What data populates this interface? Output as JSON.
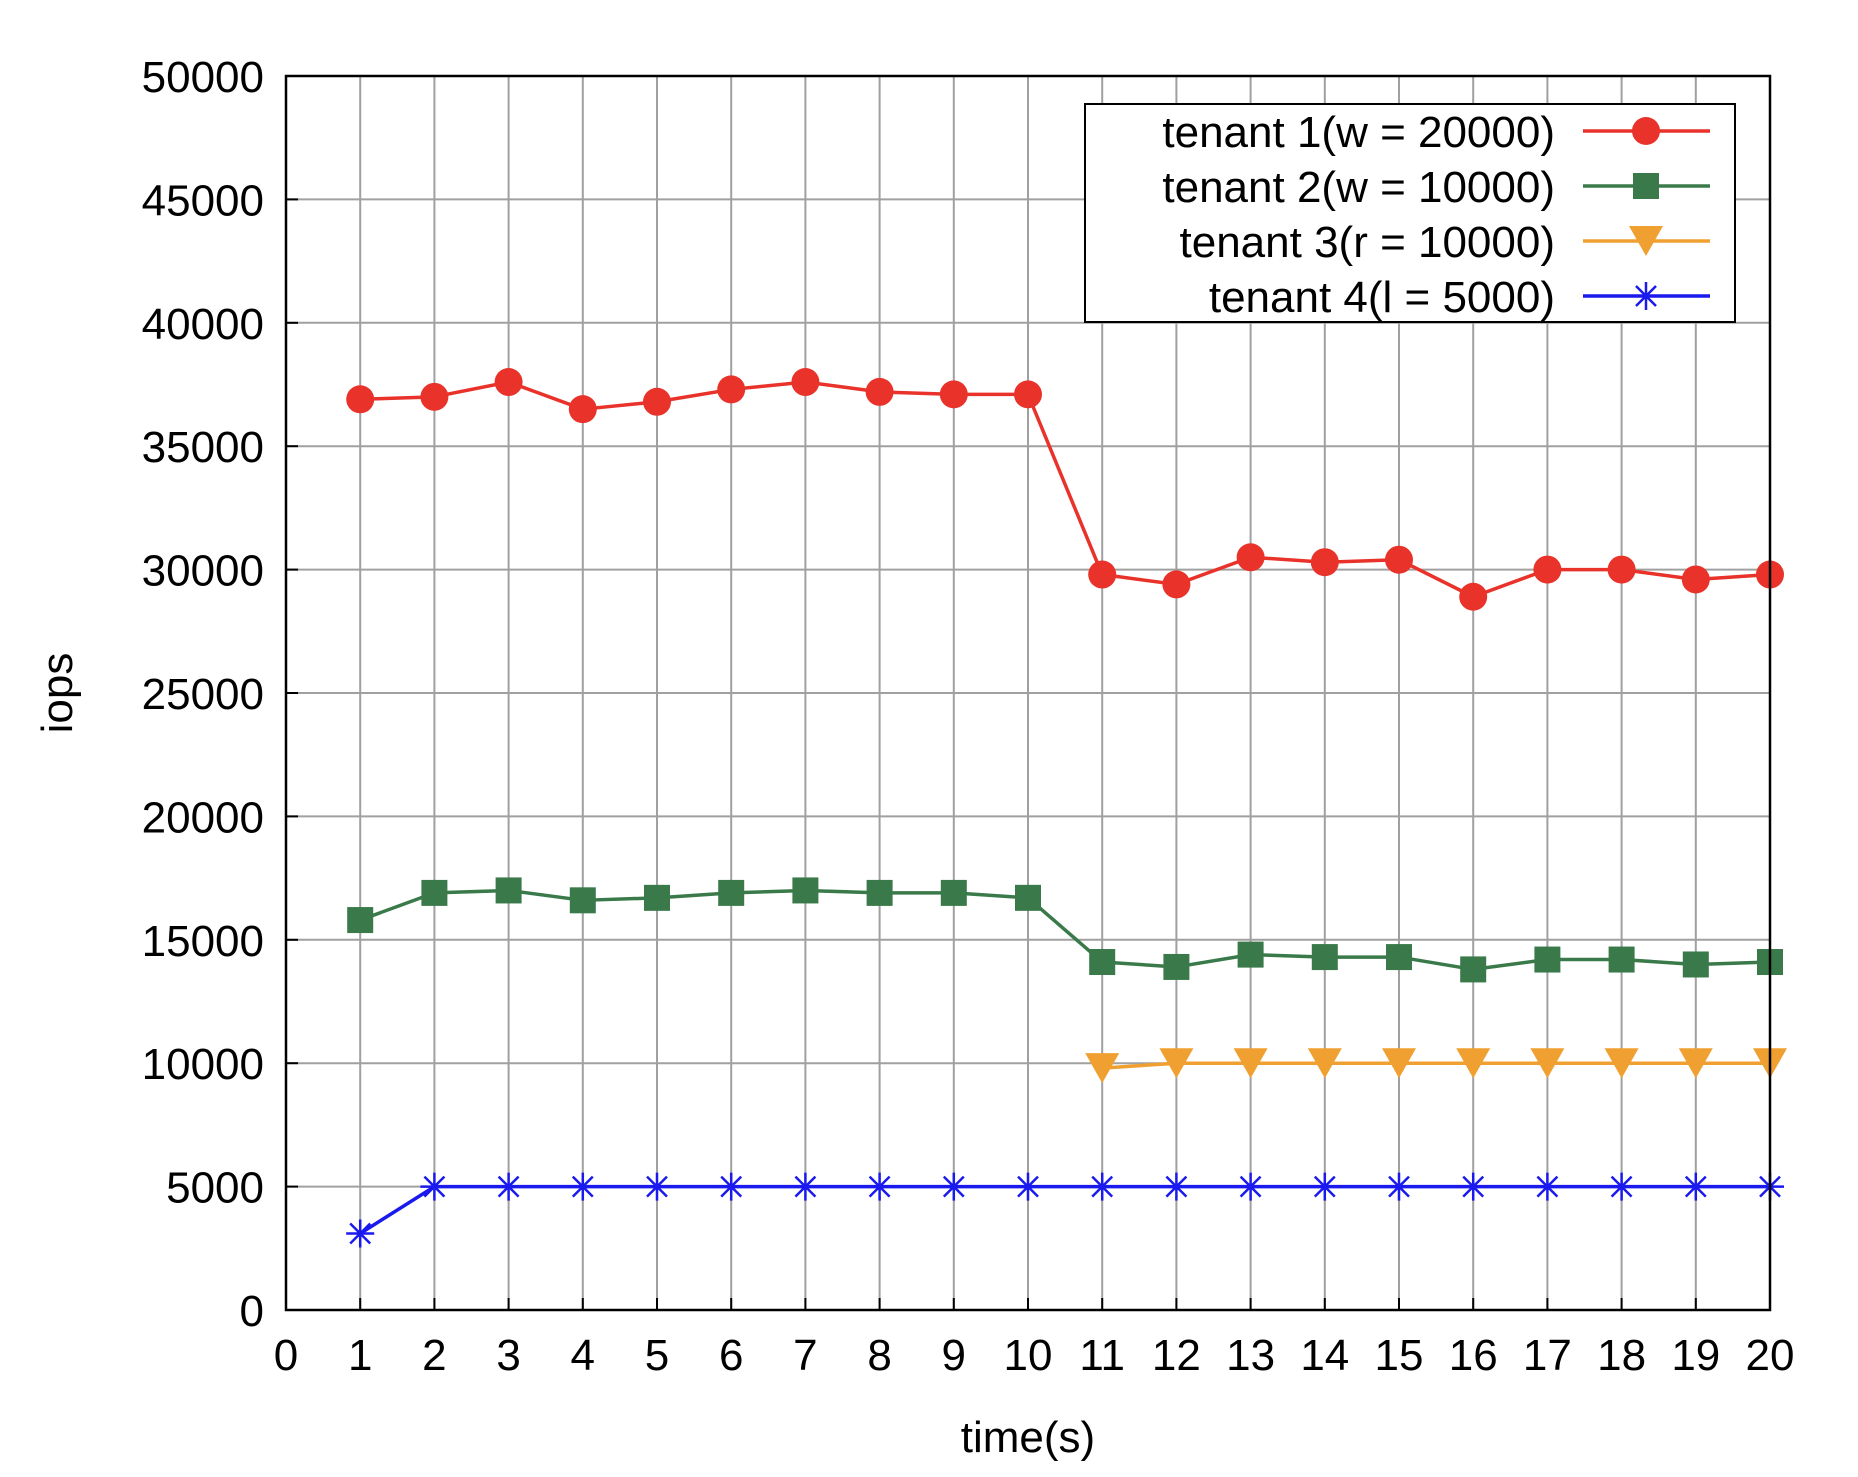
{
  "chart_data": {
    "type": "line",
    "title": "",
    "xlabel": "time(s)",
    "ylabel": "iops",
    "xlim": [
      0,
      20
    ],
    "ylim": [
      0,
      50000
    ],
    "xticks": [
      "0",
      "1",
      "2",
      "3",
      "4",
      "5",
      "6",
      "7",
      "8",
      "9",
      "10",
      "11",
      "12",
      "13",
      "14",
      "15",
      "16",
      "17",
      "18",
      "19",
      "20"
    ],
    "yticks": [
      "0",
      "5000",
      "10000",
      "15000",
      "20000",
      "25000",
      "30000",
      "35000",
      "40000",
      "45000",
      "50000"
    ],
    "grid": true,
    "legend_position": "top-right",
    "series": [
      {
        "name": "tenant 1(w = 20000)",
        "color": "#e8322a",
        "marker": "circle",
        "x": [
          1,
          2,
          3,
          4,
          5,
          6,
          7,
          8,
          9,
          10,
          11,
          12,
          13,
          14,
          15,
          16,
          17,
          18,
          19,
          20
        ],
        "values": [
          36900,
          37000,
          37600,
          36500,
          36800,
          37300,
          37600,
          37200,
          37100,
          37100,
          29800,
          29400,
          30500,
          30300,
          30400,
          28900,
          30000,
          30000,
          29600,
          29800
        ]
      },
      {
        "name": "tenant 2(w = 10000)",
        "color": "#3a7a4a",
        "marker": "square",
        "x": [
          1,
          2,
          3,
          4,
          5,
          6,
          7,
          8,
          9,
          10,
          11,
          12,
          13,
          14,
          15,
          16,
          17,
          18,
          19,
          20
        ],
        "values": [
          15800,
          16900,
          17000,
          16600,
          16700,
          16900,
          17000,
          16900,
          16900,
          16700,
          14100,
          13900,
          14400,
          14300,
          14300,
          13800,
          14200,
          14200,
          14000,
          14100
        ]
      },
      {
        "name": "tenant 3(r = 10000)",
        "color": "#f0a030",
        "marker": "triangle-down",
        "x": [
          11,
          12,
          13,
          14,
          15,
          16,
          17,
          18,
          19,
          20
        ],
        "values": [
          9800,
          10000,
          10000,
          10000,
          10000,
          10000,
          10000,
          10000,
          10000,
          10000
        ]
      },
      {
        "name": "tenant 4(l = 5000)",
        "color": "#1a1aee",
        "marker": "star",
        "x": [
          1,
          2,
          3,
          4,
          5,
          6,
          7,
          8,
          9,
          10,
          11,
          12,
          13,
          14,
          15,
          16,
          17,
          18,
          19,
          20
        ],
        "values": [
          3100,
          5000,
          5000,
          5000,
          5000,
          5000,
          5000,
          5000,
          5000,
          5000,
          5000,
          5000,
          5000,
          5000,
          5000,
          5000,
          5000,
          5000,
          5000,
          5000
        ]
      }
    ]
  }
}
